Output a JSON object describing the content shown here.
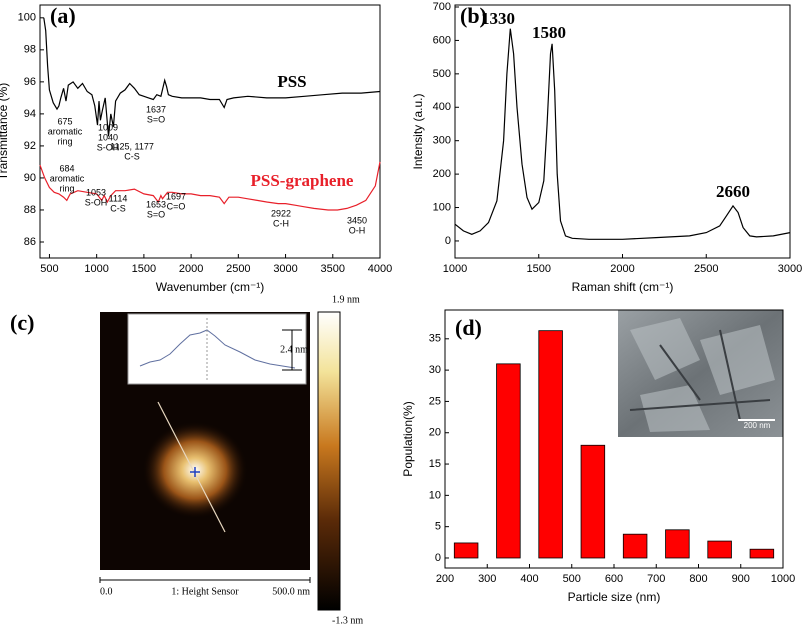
{
  "chart_data": [
    {
      "type": "line",
      "label": "(a)",
      "xlabel": "Wavenumber (cm⁻¹)",
      "ylabel": "Transmittance (%)",
      "xlim": [
        400,
        4000
      ],
      "ylim": [
        85,
        100.8
      ],
      "xticks": [
        500,
        1000,
        1500,
        2000,
        2500,
        3000,
        3500,
        4000
      ],
      "yticks": [
        86,
        88,
        90,
        92,
        94,
        96,
        98,
        100
      ],
      "series": [
        {
          "name": "PSS",
          "color": "#000000",
          "x": [
            440,
            460,
            480,
            500,
            540,
            580,
            600,
            620,
            650,
            675,
            700,
            750,
            800,
            850,
            900,
            950,
            980,
            1009,
            1025,
            1040,
            1060,
            1090,
            1125,
            1150,
            1177,
            1200,
            1250,
            1300,
            1350,
            1400,
            1450,
            1500,
            1550,
            1600,
            1637,
            1680,
            1720,
            1740,
            1760,
            1800,
            1900,
            2000,
            2100,
            2200,
            2300,
            2350,
            2380,
            2450,
            2600,
            2800,
            3000,
            3200,
            3400,
            3600,
            3800,
            4000
          ],
          "values": [
            100,
            99.2,
            97,
            95.5,
            94.7,
            94.3,
            94.5,
            95,
            95.6,
            94.8,
            95.8,
            96,
            95.6,
            95.9,
            95.4,
            95.2,
            94.5,
            93.3,
            94.8,
            93.6,
            94.2,
            95,
            92.6,
            94,
            93.2,
            94.8,
            95.3,
            95.5,
            95.9,
            95.6,
            95.2,
            95.1,
            95,
            94.9,
            95.2,
            95.1,
            96.1,
            95.7,
            95.2,
            95.1,
            95,
            95,
            95,
            94.9,
            94.9,
            94.4,
            94.9,
            95,
            95.1,
            95,
            95,
            95.1,
            95.2,
            95.3,
            95.3,
            95.4
          ]
        },
        {
          "name": "PSS-graphene",
          "color": "#e8202a",
          "x": [
            400,
            450,
            500,
            550,
            600,
            650,
            684,
            720,
            800,
            900,
            1000,
            1053,
            1080,
            1114,
            1150,
            1200,
            1300,
            1400,
            1500,
            1600,
            1653,
            1680,
            1697,
            1750,
            1800,
            1900,
            2000,
            2100,
            2200,
            2300,
            2350,
            2400,
            2500,
            2600,
            2700,
            2800,
            2922,
            3000,
            3100,
            3200,
            3300,
            3450,
            3550,
            3650,
            3750,
            3850,
            3950,
            4000
          ],
          "values": [
            90.8,
            90,
            89.4,
            89.1,
            89,
            88.8,
            88.6,
            89,
            89.2,
            89.1,
            89,
            88.6,
            88.9,
            88.5,
            88.9,
            89.2,
            89.2,
            89.3,
            89,
            88.9,
            88.5,
            88.9,
            88.7,
            89.1,
            89.1,
            89,
            89,
            88.9,
            88.9,
            88.8,
            88.4,
            88.8,
            88.8,
            88.7,
            88.6,
            88.5,
            88.4,
            88.4,
            88.3,
            88.2,
            88.1,
            88,
            88,
            88.1,
            88.3,
            88.6,
            89.5,
            91
          ]
        }
      ],
      "annotations": [
        [
          "675",
          "aromatic",
          "ring"
        ],
        [
          "1009",
          "1040",
          "S-OH"
        ],
        [
          "1125, 1177",
          "C-S"
        ],
        [
          "1637",
          "S=O"
        ],
        [
          "684",
          "aromatic",
          "ring"
        ],
        [
          "1053",
          "S-OH"
        ],
        [
          "1114",
          "C-S"
        ],
        [
          "1653",
          "S=O"
        ],
        [
          "1697",
          "C=O"
        ],
        [
          "2922",
          "C-H"
        ],
        [
          "3450",
          "O-H"
        ]
      ]
    },
    {
      "type": "line",
      "label": "(b)",
      "xlabel": "Raman shift (cm⁻¹)",
      "ylabel": "Intensity (a.u.)",
      "xlim": [
        1000,
        3000
      ],
      "ylim": [
        -51,
        706
      ],
      "xticks": [
        1000,
        1500,
        2000,
        2500,
        3000
      ],
      "yticks": [
        0,
        100,
        200,
        300,
        400,
        500,
        600,
        700
      ],
      "color": "#000000",
      "x": [
        1000,
        1050,
        1100,
        1150,
        1200,
        1250,
        1290,
        1310,
        1330,
        1350,
        1370,
        1400,
        1430,
        1460,
        1500,
        1530,
        1550,
        1570,
        1580,
        1595,
        1610,
        1630,
        1660,
        1700,
        1800,
        2000,
        2200,
        2400,
        2500,
        2580,
        2620,
        2660,
        2690,
        2720,
        2760,
        2800,
        2900,
        3000
      ],
      "values": [
        50,
        30,
        20,
        30,
        55,
        120,
        300,
        500,
        635,
        560,
        400,
        230,
        130,
        95,
        115,
        180,
        350,
        560,
        590,
        450,
        200,
        60,
        15,
        8,
        5,
        5,
        10,
        15,
        25,
        45,
        75,
        105,
        85,
        40,
        15,
        12,
        15,
        25
      ],
      "annotations": [
        [
          "1330"
        ],
        [
          "1580"
        ],
        [
          "2660"
        ]
      ]
    },
    {
      "type": "image",
      "label": "(c)",
      "xlabel": "1: Height Sensor",
      "xlim": [
        0,
        500
      ],
      "xticks": [
        {
          "value": 0,
          "label": "0.0"
        },
        {
          "value": 500,
          "label": "500.0 nm"
        }
      ],
      "colorbar_lim": [
        -1.3,
        1.9
      ],
      "colorbar_ticks": [
        {
          "value": 1.9,
          "label": "1.9 nm"
        },
        {
          "value": -1.3,
          "label": "-1.3 nm"
        }
      ],
      "annotations": [
        [
          "2.4 nm"
        ]
      ]
    },
    {
      "type": "histogram",
      "label": "(d)",
      "xlabel": "Particle size (nm)",
      "ylabel": "Population(%)",
      "bins": [
        200,
        300,
        400,
        500,
        600,
        700,
        800,
        900,
        1000
      ],
      "values": [
        2.4,
        31,
        36.3,
        18,
        3.8,
        4.5,
        2.7,
        1.4
      ],
      "color": "#ff0000",
      "xlim": [
        200,
        1000
      ],
      "ylim": [
        -1.6,
        39.6
      ],
      "xticks": [
        200,
        300,
        400,
        500,
        600,
        700,
        800,
        900,
        1000
      ],
      "yticks": [
        0,
        5,
        10,
        15,
        20,
        25,
        30,
        35
      ],
      "annotations": [
        [
          "200 nm"
        ]
      ]
    }
  ]
}
